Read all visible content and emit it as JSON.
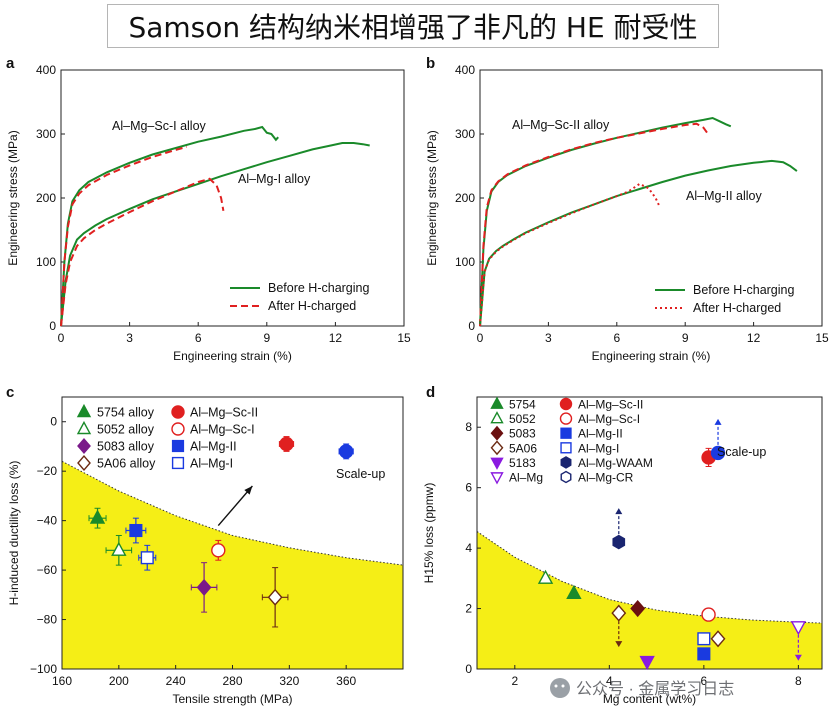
{
  "title": "Samson 结构纳米相增强了非凡的 HE 耐受性",
  "watermark": "公众号 · 金属学习日志",
  "chart_data": [
    {
      "panel": "a",
      "type": "line",
      "xlabel": "Engineering strain (%)",
      "ylabel": "Engineering stress (MPa)",
      "xlim": [
        0,
        15
      ],
      "ylim": [
        0,
        400
      ],
      "xticks": [
        0,
        3,
        6,
        9,
        12,
        15
      ],
      "yticks": [
        0,
        100,
        200,
        300,
        400
      ],
      "annotations": [
        "Al–Mg–Sc-I alloy",
        "Al–Mg-I alloy"
      ],
      "legend": {
        "position": "bottom-right",
        "entries": [
          "Before H-charging",
          "After H-charged"
        ]
      },
      "series": [
        {
          "name": "Before H-charging",
          "label": "Al–Mg–Sc-I alloy",
          "color": "#1a8a2a",
          "style": "solid",
          "x": [
            0,
            0.15,
            0.3,
            0.5,
            0.8,
            1.2,
            2,
            3,
            4,
            5,
            6,
            7,
            8,
            8.5,
            8.8,
            9.0,
            9.2,
            9.4,
            9.5
          ],
          "y": [
            0,
            100,
            160,
            195,
            212,
            225,
            240,
            255,
            268,
            278,
            288,
            296,
            305,
            308,
            311,
            302,
            300,
            291,
            295
          ]
        },
        {
          "name": "After H-charged",
          "label": "Al–Mg–Sc-I alloy",
          "color": "#e02020",
          "style": "dashed",
          "x": [
            0,
            0.15,
            0.3,
            0.5,
            0.8,
            1.2,
            2,
            3,
            4,
            5,
            5.3,
            5.5
          ],
          "y": [
            0,
            100,
            155,
            190,
            207,
            220,
            236,
            251,
            264,
            275,
            278,
            280
          ]
        },
        {
          "name": "Before H-charging",
          "label": "Al–Mg-I alloy",
          "color": "#1a8a2a",
          "style": "solid",
          "x": [
            0,
            0.2,
            0.4,
            0.7,
            1,
            1.5,
            2,
            3,
            4,
            5,
            6,
            7,
            8,
            9,
            10,
            11,
            11.8,
            12.3,
            12.8,
            13.2,
            13.5
          ],
          "y": [
            0,
            70,
            110,
            135,
            145,
            157,
            167,
            183,
            198,
            210,
            222,
            234,
            245,
            256,
            266,
            276,
            282,
            286,
            286,
            284,
            282
          ]
        },
        {
          "name": "After H-charged",
          "label": "Al–Mg-I alloy",
          "color": "#e02020",
          "style": "dashed",
          "x": [
            0,
            0.2,
            0.4,
            0.7,
            1,
            1.5,
            2,
            3,
            4,
            5,
            6,
            6.5,
            6.8,
            7.0,
            7.1
          ],
          "y": [
            0,
            65,
            100,
            125,
            137,
            150,
            160,
            178,
            195,
            210,
            225,
            230,
            220,
            200,
            180
          ]
        }
      ]
    },
    {
      "panel": "b",
      "type": "line",
      "xlabel": "Engineering strain (%)",
      "ylabel": "Engineering stress (MPa)",
      "xlim": [
        0,
        15
      ],
      "ylim": [
        0,
        400
      ],
      "xticks": [
        0,
        3,
        6,
        9,
        12,
        15
      ],
      "yticks": [
        0,
        100,
        200,
        300,
        400
      ],
      "annotations": [
        "Al–Mg–Sc-II alloy",
        "Al–Mg-II alloy"
      ],
      "legend": {
        "position": "bottom-right",
        "entries": [
          "Before H-charging",
          "After H-charged"
        ]
      },
      "series": [
        {
          "name": "Before H-charging",
          "label": "Al–Mg–Sc-II alloy",
          "color": "#1a8a2a",
          "style": "solid",
          "x": [
            0,
            0.15,
            0.3,
            0.5,
            0.8,
            1.2,
            2,
            3,
            4,
            5,
            6,
            7,
            8,
            9,
            9.8,
            10.2,
            10.5,
            10.8,
            11.0
          ],
          "y": [
            0,
            120,
            180,
            210,
            225,
            236,
            250,
            263,
            275,
            285,
            294,
            302,
            310,
            317,
            322,
            325,
            320,
            315,
            312
          ]
        },
        {
          "name": "After H-charged",
          "label": "Al–Mg–Sc-II alloy",
          "color": "#e02020",
          "style": "dashed",
          "x": [
            0,
            0.15,
            0.3,
            0.5,
            0.8,
            1.2,
            2,
            3,
            4,
            5,
            6,
            7,
            8,
            9,
            9.5,
            9.8,
            10.0
          ],
          "y": [
            0,
            125,
            185,
            212,
            226,
            237,
            251,
            264,
            276,
            286,
            294,
            301,
            308,
            314,
            316,
            310,
            300
          ]
        },
        {
          "name": "Before H-charging",
          "label": "Al–Mg-II alloy",
          "color": "#1a8a2a",
          "style": "solid",
          "x": [
            0,
            0.2,
            0.4,
            0.7,
            1,
            1.5,
            2,
            3,
            4,
            5,
            6,
            7,
            8,
            9,
            10,
            11,
            12,
            12.8,
            13.3,
            13.6,
            13.9
          ],
          "y": [
            0,
            85,
            105,
            117,
            125,
            136,
            146,
            162,
            177,
            190,
            203,
            214,
            225,
            235,
            243,
            250,
            255,
            258,
            256,
            250,
            242
          ]
        },
        {
          "name": "After H-charged",
          "label": "Al–Mg-II alloy",
          "color": "#e02020",
          "style": "dotted",
          "x": [
            0,
            0.2,
            0.4,
            0.7,
            1,
            1.5,
            2,
            3,
            4,
            5,
            6,
            6.5,
            7,
            7.4,
            7.7,
            7.9
          ],
          "y": [
            0,
            85,
            104,
            116,
            124,
            135,
            145,
            161,
            176,
            190,
            203,
            210,
            222,
            215,
            200,
            185
          ]
        }
      ]
    },
    {
      "panel": "c",
      "type": "scatter",
      "xlabel": "Tensile strength (MPa)",
      "ylabel": "H-induced ductility loss (%)",
      "xlim": [
        160,
        400
      ],
      "ylim": [
        -100,
        10
      ],
      "xticks": [
        160,
        200,
        240,
        280,
        320,
        360
      ],
      "yticks": [
        0,
        -20,
        -40,
        -60,
        -80,
        -100
      ],
      "boundary": {
        "fill": "#f5ee16",
        "x": [
          160,
          200,
          240,
          280,
          320,
          360,
          400
        ],
        "y": [
          -16,
          -28,
          -38,
          -46,
          -51,
          -55,
          -58
        ]
      },
      "annotations": [
        "Scale-up"
      ],
      "arrow": {
        "from": [
          270,
          -42
        ],
        "to": [
          294,
          -26
        ]
      },
      "series": [
        {
          "name": "5754 alloy",
          "marker": "triangle",
          "filled": true,
          "color": "#1a8a2a",
          "points": [
            {
              "x": 185,
              "y": -39,
              "xerr": 6,
              "yerr": 4
            }
          ]
        },
        {
          "name": "5052 alloy",
          "marker": "triangle",
          "filled": false,
          "color": "#1a8a2a",
          "points": [
            {
              "x": 200,
              "y": -52,
              "xerr": 9,
              "yerr": 6
            }
          ]
        },
        {
          "name": "5083 alloy",
          "marker": "diamond",
          "filled": true,
          "color": "#7a1a8a",
          "points": [
            {
              "x": 260,
              "y": -67,
              "xerr": 9,
              "yerr": 10
            }
          ]
        },
        {
          "name": "5A06 alloy",
          "marker": "diamond",
          "filled": false,
          "color": "#6b2a12",
          "points": [
            {
              "x": 310,
              "y": -71,
              "xerr": 9,
              "yerr": 12
            }
          ]
        },
        {
          "name": "Al–Mg–Sc-II",
          "marker": "circle",
          "filled": true,
          "color": "#e02020",
          "points": [
            {
              "x": 318,
              "y": -9,
              "xerr": 5,
              "yerr": 3
            }
          ]
        },
        {
          "name": "Al–Mg–Sc-I",
          "marker": "circle",
          "filled": false,
          "color": "#e02020",
          "points": [
            {
              "x": 270,
              "y": -52,
              "xerr": 4,
              "yerr": 4
            }
          ]
        },
        {
          "name": "Al–Mg-II",
          "marker": "square",
          "filled": true,
          "color": "#1a3ae0",
          "points": [
            {
              "x": 212,
              "y": -44,
              "xerr": 7,
              "yerr": 5
            }
          ]
        },
        {
          "name": "Al–Mg-I",
          "marker": "square",
          "filled": false,
          "color": "#1a3ae0",
          "points": [
            {
              "x": 220,
              "y": -55,
              "xerr": 6,
              "yerr": 5
            }
          ]
        },
        {
          "name": "Scale-up",
          "marker": "circle",
          "filled": true,
          "color": "#1a3ae0",
          "points": [
            {
              "x": 360,
              "y": -12,
              "xerr": 5,
              "yerr": 3
            }
          ]
        }
      ],
      "legend": {
        "position": "top-left",
        "columns": 2
      }
    },
    {
      "panel": "d",
      "type": "scatter",
      "xlabel": "Mg content (wt%)",
      "ylabel": "H15% loss (ppmw)",
      "xlim": [
        1.2,
        8.5
      ],
      "ylim": [
        0,
        9
      ],
      "xticks": [
        2,
        4,
        6,
        8
      ],
      "yticks": [
        0,
        2,
        4,
        6,
        8
      ],
      "boundary": {
        "fill": "#f5ee16",
        "x": [
          1.2,
          2,
          3,
          4,
          5,
          6,
          7,
          8,
          8.5
        ],
        "y": [
          4.55,
          3.7,
          2.9,
          2.3,
          1.95,
          1.75,
          1.62,
          1.55,
          1.52
        ]
      },
      "annotations": [
        "Scale-up"
      ],
      "series": [
        {
          "name": "5754",
          "marker": "triangle",
          "filled": true,
          "color": "#1a8a2a",
          "points": [
            {
              "x": 3.25,
              "y": 2.5
            }
          ]
        },
        {
          "name": "5052",
          "marker": "triangle",
          "filled": false,
          "color": "#1a8a2a",
          "points": [
            {
              "x": 2.65,
              "y": 3.0
            }
          ]
        },
        {
          "name": "5083",
          "marker": "diamond",
          "filled": true,
          "color": "#6b1010",
          "points": [
            {
              "x": 4.6,
              "y": 2.0
            }
          ]
        },
        {
          "name": "5A06",
          "marker": "diamond",
          "filled": false,
          "color": "#6b2a12",
          "points": [
            {
              "x": 4.2,
              "y": 1.85,
              "arrow": "down"
            },
            {
              "x": 6.3,
              "y": 1.0
            }
          ]
        },
        {
          "name": "5183",
          "marker": "triangle-down",
          "filled": true,
          "color": "#8a1ae0",
          "points": [
            {
              "x": 4.8,
              "y": 0.25
            }
          ]
        },
        {
          "name": "Al–Mg",
          "marker": "triangle-down",
          "filled": false,
          "color": "#8a1ae0",
          "points": [
            {
              "x": 8.0,
              "y": 1.4,
              "arrow": "down"
            }
          ]
        },
        {
          "name": "Al–Mg–Sc-II",
          "marker": "circle",
          "filled": true,
          "color": "#e02020",
          "points": [
            {
              "x": 6.1,
              "y": 7.0,
              "yerr": 0.3
            }
          ]
        },
        {
          "name": "Al–Mg–Sc-I",
          "marker": "circle",
          "filled": false,
          "color": "#e02020",
          "points": [
            {
              "x": 6.1,
              "y": 1.8
            }
          ]
        },
        {
          "name": "Al–Mg-II",
          "marker": "square",
          "filled": true,
          "color": "#1a3ae0",
          "points": [
            {
              "x": 6.0,
              "y": 0.5
            }
          ]
        },
        {
          "name": "Al–Mg-I",
          "marker": "square",
          "filled": false,
          "color": "#1a3ae0",
          "points": [
            {
              "x": 6.0,
              "y": 1.0
            }
          ]
        },
        {
          "name": "Al–Mg-WAAM",
          "marker": "hexagon",
          "filled": true,
          "color": "#1a2570",
          "points": [
            {
              "x": 4.2,
              "y": 4.2,
              "arrow": "up"
            }
          ]
        },
        {
          "name": "Al–Mg-CR",
          "marker": "hexagon",
          "filled": false,
          "color": "#1a2570",
          "points": []
        },
        {
          "name": "Scale-up",
          "marker": "circle",
          "filled": true,
          "color": "#1a3ae0",
          "points": [
            {
              "x": 6.3,
              "y": 7.15,
              "arrow": "up"
            }
          ]
        }
      ],
      "legend": {
        "position": "top-left",
        "columns": 2
      }
    }
  ]
}
